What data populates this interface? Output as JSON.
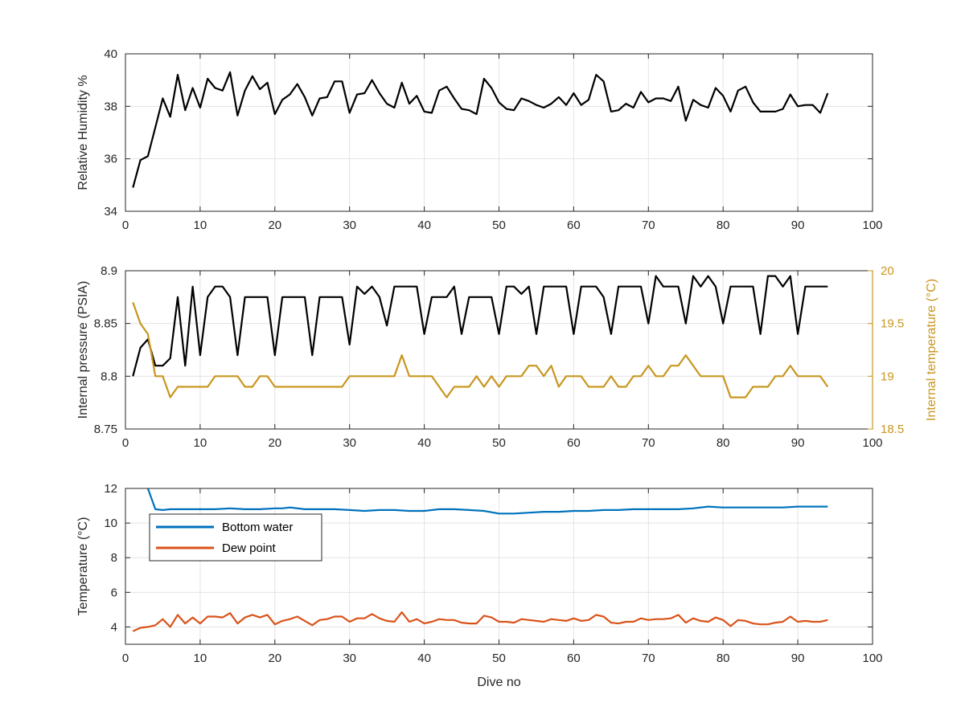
{
  "chart_data": [
    {
      "type": "line",
      "xlabel": "",
      "ylabel": "Relative Humidity %",
      "xlim": [
        0,
        100
      ],
      "ylim": [
        34,
        40
      ],
      "xticks": [
        "0",
        "10",
        "20",
        "30",
        "40",
        "50",
        "60",
        "70",
        "80",
        "90",
        "100"
      ],
      "yticks": [
        "34",
        "36",
        "38",
        "40"
      ],
      "grid": true,
      "series": [
        {
          "color": "#000000",
          "x": [
            1,
            2,
            3,
            4,
            5,
            6,
            7,
            8,
            9,
            10,
            11,
            12,
            13,
            14,
            15,
            16,
            17,
            18,
            19,
            20,
            21,
            22,
            23,
            24,
            25,
            26,
            27,
            28,
            29,
            30,
            31,
            32,
            33,
            34,
            35,
            36,
            37,
            38,
            39,
            40,
            41,
            42,
            43,
            44,
            45,
            46,
            47,
            48,
            49,
            50,
            51,
            52,
            53,
            54,
            55,
            56,
            57,
            58,
            59,
            60,
            61,
            62,
            63,
            64,
            65,
            66,
            67,
            68,
            69,
            70,
            71,
            72,
            73,
            74,
            75,
            76,
            77,
            78,
            79,
            80,
            81,
            82,
            83,
            84,
            85,
            86,
            87,
            88,
            89,
            90,
            91,
            92,
            93,
            94
          ],
          "values": [
            34.9,
            35.95,
            36.1,
            37.2,
            38.3,
            37.6,
            39.2,
            37.85,
            38.7,
            37.95,
            39.05,
            38.7,
            38.6,
            39.3,
            37.65,
            38.6,
            39.15,
            38.65,
            38.9,
            37.7,
            38.25,
            38.45,
            38.85,
            38.35,
            37.65,
            38.3,
            38.35,
            38.95,
            38.95,
            37.75,
            38.45,
            38.5,
            39.0,
            38.5,
            38.1,
            37.95,
            38.9,
            38.1,
            38.4,
            37.8,
            37.75,
            38.6,
            38.75,
            38.3,
            37.9,
            37.85,
            37.7,
            39.05,
            38.7,
            38.15,
            37.9,
            37.85,
            38.3,
            38.2,
            38.05,
            37.95,
            38.1,
            38.35,
            38.05,
            38.5,
            38.05,
            38.25,
            39.2,
            38.95,
            37.8,
            37.85,
            38.1,
            37.95,
            38.55,
            38.15,
            38.3,
            38.3,
            38.2,
            38.75,
            37.45,
            38.25,
            38.05,
            37.95,
            38.7,
            38.4,
            37.8,
            38.6,
            38.75,
            38.15,
            37.8,
            37.8,
            37.8,
            37.9,
            38.45,
            38.0,
            38.05,
            38.05,
            37.75,
            38.5
          ]
        }
      ]
    },
    {
      "type": "line",
      "xlabel": "",
      "ylabel": "Internal pressure (PSIA)",
      "ylabel_right": "Internal temperature (°C)",
      "xlim": [
        0,
        100
      ],
      "ylim": [
        8.75,
        8.9
      ],
      "ylim_right": [
        18.5,
        20
      ],
      "xticks": [
        "0",
        "10",
        "20",
        "30",
        "40",
        "50",
        "60",
        "70",
        "80",
        "90",
        "100"
      ],
      "yticks": [
        "8.75",
        "8.8",
        "8.85",
        "8.9"
      ],
      "yticks_right": [
        "18.5",
        "19",
        "19.5",
        "20"
      ],
      "grid": true,
      "series": [
        {
          "axis": "left",
          "color": "#000000",
          "x": [
            1,
            2,
            3,
            4,
            5,
            6,
            7,
            8,
            9,
            10,
            11,
            12,
            13,
            14,
            15,
            16,
            17,
            18,
            19,
            20,
            21,
            22,
            23,
            24,
            25,
            26,
            27,
            28,
            29,
            30,
            31,
            32,
            33,
            34,
            35,
            36,
            37,
            38,
            39,
            40,
            41,
            42,
            43,
            44,
            45,
            46,
            47,
            48,
            49,
            50,
            51,
            52,
            53,
            54,
            55,
            56,
            57,
            58,
            59,
            60,
            61,
            62,
            63,
            64,
            65,
            66,
            67,
            68,
            69,
            70,
            71,
            72,
            73,
            74,
            75,
            76,
            77,
            78,
            79,
            80,
            81,
            82,
            83,
            84,
            85,
            86,
            87,
            88,
            89,
            90,
            91,
            92,
            93,
            94
          ],
          "values": [
            8.8,
            8.827,
            8.835,
            8.81,
            8.81,
            8.817,
            8.875,
            8.81,
            8.885,
            8.82,
            8.875,
            8.885,
            8.885,
            8.875,
            8.82,
            8.875,
            8.875,
            8.875,
            8.875,
            8.82,
            8.875,
            8.875,
            8.875,
            8.875,
            8.82,
            8.875,
            8.875,
            8.875,
            8.875,
            8.83,
            8.885,
            8.878,
            8.885,
            8.875,
            8.848,
            8.885,
            8.885,
            8.885,
            8.885,
            8.84,
            8.875,
            8.875,
            8.875,
            8.885,
            8.84,
            8.875,
            8.875,
            8.875,
            8.875,
            8.84,
            8.885,
            8.885,
            8.878,
            8.885,
            8.84,
            8.885,
            8.885,
            8.885,
            8.885,
            8.84,
            8.885,
            8.885,
            8.885,
            8.875,
            8.84,
            8.885,
            8.885,
            8.885,
            8.885,
            8.85,
            8.895,
            8.885,
            8.885,
            8.885,
            8.85,
            8.895,
            8.885,
            8.895,
            8.885,
            8.85,
            8.885,
            8.885,
            8.885,
            8.885,
            8.84,
            8.895,
            8.895,
            8.885,
            8.895,
            8.84,
            8.885,
            8.885,
            8.885,
            8.885
          ]
        },
        {
          "axis": "right",
          "color": "#C8961E",
          "x": [
            1,
            2,
            3,
            4,
            5,
            6,
            7,
            8,
            9,
            10,
            11,
            12,
            13,
            14,
            15,
            16,
            17,
            18,
            19,
            20,
            21,
            22,
            23,
            24,
            25,
            26,
            27,
            28,
            29,
            30,
            31,
            32,
            33,
            34,
            35,
            36,
            37,
            38,
            39,
            40,
            41,
            42,
            43,
            44,
            45,
            46,
            47,
            48,
            49,
            50,
            51,
            52,
            53,
            54,
            55,
            56,
            57,
            58,
            59,
            60,
            61,
            62,
            63,
            64,
            65,
            66,
            67,
            68,
            69,
            70,
            71,
            72,
            73,
            74,
            75,
            76,
            77,
            78,
            79,
            80,
            81,
            82,
            83,
            84,
            85,
            86,
            87,
            88,
            89,
            90,
            91,
            92,
            93,
            94
          ],
          "values": [
            19.7,
            19.5,
            19.4,
            19.0,
            19.0,
            18.8,
            18.9,
            18.9,
            18.9,
            18.9,
            18.9,
            19.0,
            19.0,
            19.0,
            19.0,
            18.9,
            18.9,
            19.0,
            19.0,
            18.9,
            18.9,
            18.9,
            18.9,
            18.9,
            18.9,
            18.9,
            18.9,
            18.9,
            18.9,
            19.0,
            19.0,
            19.0,
            19.0,
            19.0,
            19.0,
            19.0,
            19.2,
            19.0,
            19.0,
            19.0,
            19.0,
            18.9,
            18.8,
            18.9,
            18.9,
            18.9,
            19.0,
            18.9,
            19.0,
            18.9,
            19.0,
            19.0,
            19.0,
            19.1,
            19.1,
            19.0,
            19.1,
            18.9,
            19.0,
            19.0,
            19.0,
            18.9,
            18.9,
            18.9,
            19.0,
            18.9,
            18.9,
            19.0,
            19.0,
            19.1,
            19.0,
            19.0,
            19.1,
            19.1,
            19.2,
            19.1,
            19.0,
            19.0,
            19.0,
            19.0,
            18.8,
            18.8,
            18.8,
            18.9,
            18.9,
            18.9,
            19.0,
            19.0,
            19.1,
            19.0,
            19.0,
            19.0,
            19.0,
            18.9
          ]
        }
      ]
    },
    {
      "type": "line",
      "xlabel": "Dive no",
      "ylabel": "Temperature (°C)",
      "xlim": [
        0,
        100
      ],
      "ylim": [
        3,
        12
      ],
      "xticks": [
        "0",
        "10",
        "20",
        "30",
        "40",
        "50",
        "60",
        "70",
        "80",
        "90",
        "100"
      ],
      "yticks": [
        "4",
        "6",
        "8",
        "10",
        "12"
      ],
      "grid": true,
      "legend_position": "top-left",
      "series": [
        {
          "name": "Bottom water",
          "color": "#0072BD",
          "x": [
            3,
            4,
            5,
            6,
            7,
            8,
            10,
            12,
            14,
            16,
            18,
            20,
            21,
            22,
            24,
            26,
            28,
            30,
            32,
            34,
            36,
            38,
            40,
            42,
            44,
            46,
            48,
            50,
            52,
            54,
            56,
            58,
            60,
            62,
            64,
            66,
            68,
            70,
            72,
            74,
            76,
            78,
            80,
            82,
            84,
            86,
            88,
            90,
            92,
            94
          ],
          "values": [
            12.0,
            10.8,
            10.75,
            10.8,
            10.8,
            10.8,
            10.8,
            10.8,
            10.85,
            10.8,
            10.8,
            10.85,
            10.85,
            10.9,
            10.8,
            10.8,
            10.8,
            10.75,
            10.7,
            10.75,
            10.75,
            10.7,
            10.7,
            10.8,
            10.8,
            10.75,
            10.7,
            10.55,
            10.55,
            10.6,
            10.65,
            10.65,
            10.7,
            10.7,
            10.75,
            10.75,
            10.8,
            10.8,
            10.8,
            10.8,
            10.85,
            10.95,
            10.9,
            10.9,
            10.9,
            10.9,
            10.9,
            10.95,
            10.95,
            10.95
          ]
        },
        {
          "name": "Dew point",
          "color": "#D95319",
          "x": [
            1,
            2,
            3,
            4,
            5,
            6,
            7,
            8,
            9,
            10,
            11,
            12,
            13,
            14,
            15,
            16,
            17,
            18,
            19,
            20,
            21,
            22,
            23,
            24,
            25,
            26,
            27,
            28,
            29,
            30,
            31,
            32,
            33,
            34,
            35,
            36,
            37,
            38,
            39,
            40,
            41,
            42,
            43,
            44,
            45,
            46,
            47,
            48,
            49,
            50,
            51,
            52,
            53,
            54,
            55,
            56,
            57,
            58,
            59,
            60,
            61,
            62,
            63,
            64,
            65,
            66,
            67,
            68,
            69,
            70,
            71,
            72,
            73,
            74,
            75,
            76,
            77,
            78,
            79,
            80,
            81,
            82,
            83,
            84,
            85,
            86,
            87,
            88,
            89,
            90,
            91,
            92,
            93,
            94
          ],
          "values": [
            3.75,
            3.95,
            4.0,
            4.1,
            4.45,
            4.0,
            4.7,
            4.2,
            4.55,
            4.2,
            4.6,
            4.6,
            4.55,
            4.8,
            4.2,
            4.55,
            4.7,
            4.55,
            4.7,
            4.15,
            4.35,
            4.45,
            4.6,
            4.35,
            4.1,
            4.4,
            4.45,
            4.6,
            4.6,
            4.3,
            4.5,
            4.5,
            4.75,
            4.5,
            4.35,
            4.3,
            4.85,
            4.3,
            4.45,
            4.2,
            4.3,
            4.45,
            4.4,
            4.4,
            4.25,
            4.2,
            4.2,
            4.65,
            4.55,
            4.3,
            4.3,
            4.25,
            4.45,
            4.4,
            4.35,
            4.3,
            4.45,
            4.4,
            4.35,
            4.5,
            4.35,
            4.4,
            4.7,
            4.6,
            4.25,
            4.2,
            4.3,
            4.3,
            4.5,
            4.4,
            4.45,
            4.45,
            4.5,
            4.7,
            4.25,
            4.5,
            4.35,
            4.3,
            4.55,
            4.4,
            4.05,
            4.4,
            4.35,
            4.2,
            4.15,
            4.15,
            4.25,
            4.3,
            4.6,
            4.3,
            4.35,
            4.3,
            4.3,
            4.4
          ]
        }
      ]
    }
  ]
}
